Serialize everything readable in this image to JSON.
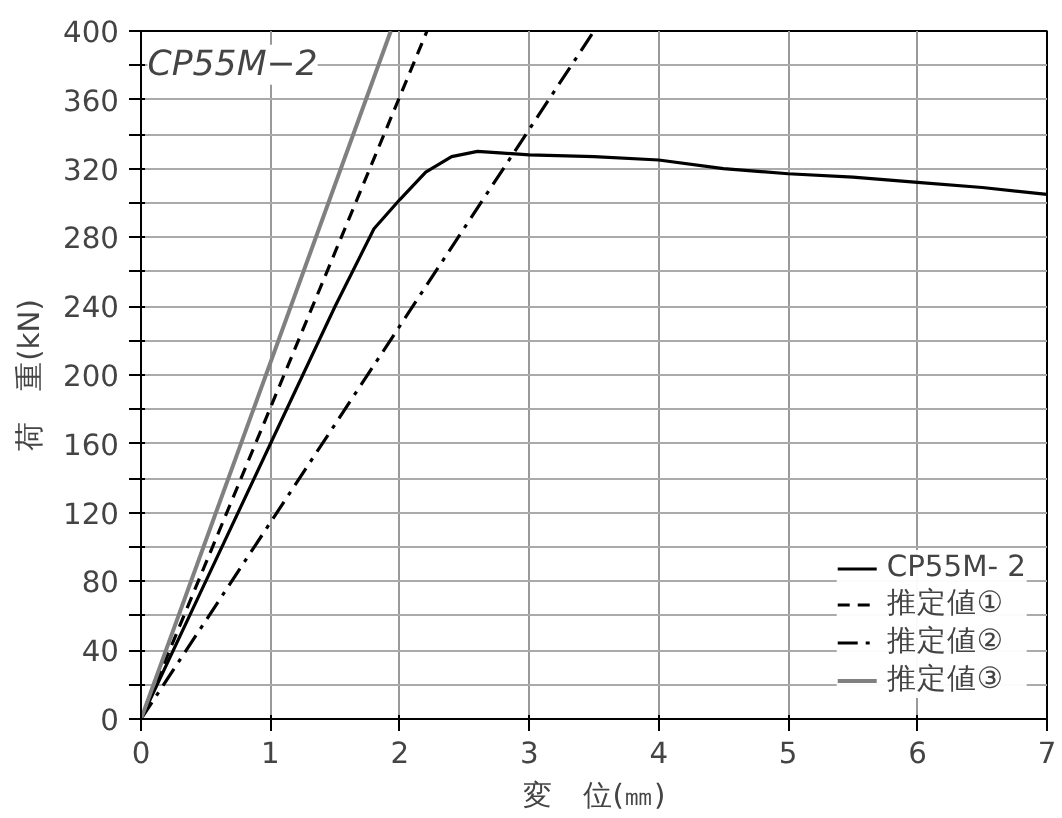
{
  "chart_data": {
    "type": "line",
    "xlabel": "変　位(㎜)",
    "ylabel": "荷　重(kN)",
    "annotations": [
      "CP55M−2"
    ],
    "series": [
      {
        "name": "CP55M- 2",
        "color": "#000000",
        "line_style": "solid",
        "x": [
          0,
          0.5,
          1,
          1.5,
          1.8,
          2,
          2.2,
          2.4,
          2.6,
          2.8,
          3,
          3.5,
          4,
          4.5,
          5,
          5.5,
          6,
          6.5,
          7
        ],
        "values": [
          0,
          80,
          160,
          240,
          285,
          302,
          318,
          327,
          330,
          329,
          328,
          327,
          325,
          320,
          317,
          315,
          312,
          309,
          305
        ]
      },
      {
        "name": "推定値①",
        "color": "#000000",
        "line_style": "dashed",
        "x": [
          0,
          2.21
        ],
        "values": [
          0,
          400
        ]
      },
      {
        "name": "推定値②",
        "color": "#000000",
        "line_style": "dashdot",
        "x": [
          0,
          3.5
        ],
        "values": [
          0,
          400
        ]
      },
      {
        "name": "推定値③",
        "color": "#808080",
        "line_style": "solid",
        "x": [
          0,
          1.93
        ],
        "values": [
          0,
          400
        ]
      }
    ],
    "xlim": [
      0,
      7
    ],
    "ylim": [
      0,
      400
    ],
    "xticks": [
      0,
      1,
      2,
      3,
      4,
      5,
      6,
      7
    ],
    "yticks": [
      0,
      {
        "value": 20,
        "label": null
      },
      40,
      {
        "value": 60,
        "label": null
      },
      80,
      {
        "value": 100,
        "label": null
      },
      120,
      {
        "value": 140,
        "label": null
      },
      160,
      {
        "value": 180,
        "label": null
      },
      200,
      {
        "value": 220,
        "label": null
      },
      240,
      {
        "value": 260,
        "label": null
      },
      280,
      {
        "value": 300,
        "label": null
      },
      320,
      {
        "value": 340,
        "label": null
      },
      360,
      {
        "value": 380,
        "label": null
      },
      400
    ],
    "grid": true,
    "legend": "bottom right",
    "marker": "none"
  }
}
